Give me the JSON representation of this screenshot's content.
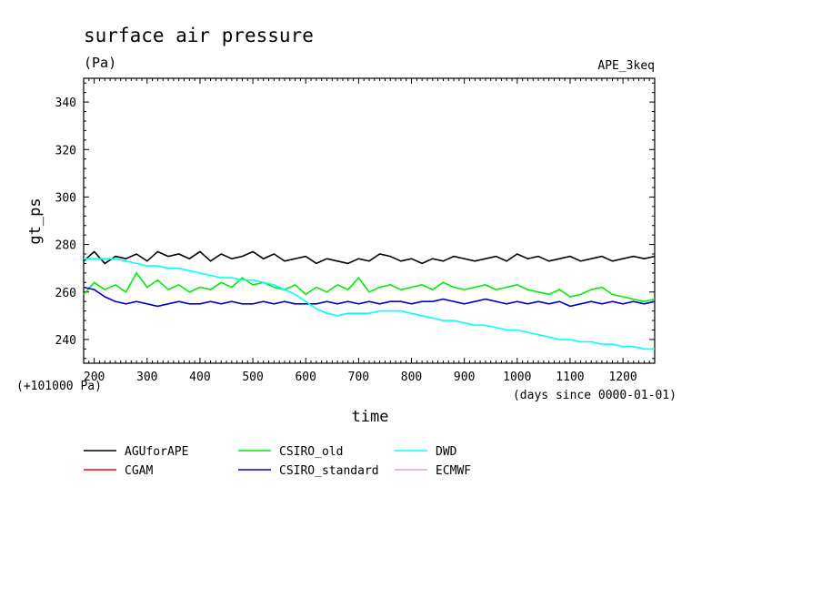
{
  "chart_data": {
    "type": "line",
    "title": "surface air pressure",
    "units": "(Pa)",
    "experiment": "APE_3keq",
    "ylabel": "gt_ps",
    "xlabel": "time",
    "y_offset_note": "(+101000 Pa)",
    "x_units_note": "(days since 0000-01-01)",
    "xlim": [
      180,
      1260
    ],
    "ylim": [
      230,
      350
    ],
    "x_ticks": [
      200,
      300,
      400,
      500,
      600,
      700,
      800,
      900,
      1000,
      1100,
      1200
    ],
    "y_ticks": [
      240,
      260,
      280,
      300,
      320,
      340
    ],
    "x_tick_labels": [
      "200",
      "300",
      "400",
      "500",
      "600",
      "700",
      "800",
      "900",
      "1000",
      "1100",
      "1200"
    ],
    "y_tick_labels": [
      "240",
      "260",
      "280",
      "300",
      "320",
      "340"
    ],
    "legend_placement": "bottom",
    "series": [
      {
        "name": "AGUforAPE",
        "color": "#000000",
        "x": [
          180,
          200,
          220,
          240,
          260,
          280,
          300,
          320,
          340,
          360,
          380,
          400,
          420,
          440,
          460,
          480,
          500,
          520,
          540,
          560,
          580,
          600,
          620,
          640,
          660,
          680,
          700,
          720,
          740,
          760,
          780,
          800,
          820,
          840,
          860,
          880,
          900,
          920,
          940,
          960,
          980,
          1000,
          1020,
          1040,
          1060,
          1080,
          1100,
          1120,
          1140,
          1160,
          1180,
          1200,
          1220,
          1240,
          1260
        ],
        "y": [
          273,
          277,
          272,
          275,
          274,
          276,
          273,
          277,
          275,
          276,
          274,
          277,
          273,
          276,
          274,
          275,
          277,
          274,
          276,
          273,
          274,
          275,
          272,
          274,
          273,
          272,
          274,
          273,
          276,
          275,
          273,
          274,
          272,
          274,
          273,
          275,
          274,
          273,
          274,
          275,
          273,
          276,
          274,
          275,
          273,
          274,
          275,
          273,
          274,
          275,
          273,
          274,
          275,
          274,
          275
        ]
      },
      {
        "name": "CGAM",
        "color": "#ff0000",
        "x": [],
        "y": []
      },
      {
        "name": "CSIRO_old",
        "color": "#00ee00",
        "x": [
          180,
          200,
          220,
          240,
          260,
          280,
          300,
          320,
          340,
          360,
          380,
          400,
          420,
          440,
          460,
          480,
          500,
          520,
          540,
          560,
          580,
          600,
          620,
          640,
          660,
          680,
          700,
          720,
          740,
          760,
          780,
          800,
          820,
          840,
          860,
          880,
          900,
          920,
          940,
          960,
          980,
          1000,
          1020,
          1040,
          1060,
          1080,
          1100,
          1120,
          1140,
          1160,
          1180,
          1200,
          1220,
          1240,
          1260
        ],
        "y": [
          259,
          264,
          261,
          263,
          260,
          268,
          262,
          265,
          261,
          263,
          260,
          262,
          261,
          264,
          262,
          266,
          263,
          264,
          262,
          261,
          263,
          259,
          262,
          260,
          263,
          261,
          266,
          260,
          262,
          263,
          261,
          262,
          263,
          261,
          264,
          262,
          261,
          262,
          263,
          261,
          262,
          263,
          261,
          260,
          259,
          261,
          258,
          259,
          261,
          262,
          259,
          258,
          257,
          256,
          257
        ]
      },
      {
        "name": "CSIRO_standard",
        "color": "#0000cc",
        "x": [
          180,
          200,
          220,
          240,
          260,
          280,
          300,
          320,
          340,
          360,
          380,
          400,
          420,
          440,
          460,
          480,
          500,
          520,
          540,
          560,
          580,
          600,
          620,
          640,
          660,
          680,
          700,
          720,
          740,
          760,
          780,
          800,
          820,
          840,
          860,
          880,
          900,
          920,
          940,
          960,
          980,
          1000,
          1020,
          1040,
          1060,
          1080,
          1100,
          1120,
          1140,
          1160,
          1180,
          1200,
          1220,
          1240,
          1260
        ],
        "y": [
          262,
          261,
          258,
          256,
          255,
          256,
          255,
          254,
          255,
          256,
          255,
          255,
          256,
          255,
          256,
          255,
          255,
          256,
          255,
          256,
          255,
          255,
          255,
          256,
          255,
          256,
          255,
          256,
          255,
          256,
          256,
          255,
          256,
          256,
          257,
          256,
          255,
          256,
          257,
          256,
          255,
          256,
          255,
          256,
          255,
          256,
          254,
          255,
          256,
          255,
          256,
          255,
          256,
          255,
          256
        ]
      },
      {
        "name": "DWD",
        "color": "#00ffff",
        "x": [
          180,
          200,
          220,
          240,
          260,
          280,
          300,
          320,
          340,
          360,
          380,
          400,
          420,
          440,
          460,
          480,
          500,
          520,
          540,
          560,
          580,
          600,
          620,
          640,
          660,
          680,
          700,
          720,
          740,
          760,
          780,
          800,
          820,
          840,
          860,
          880,
          900,
          920,
          940,
          960,
          980,
          1000,
          1020,
          1040,
          1060,
          1080,
          1100,
          1120,
          1140,
          1160,
          1180,
          1200,
          1220,
          1240,
          1260
        ],
        "y": [
          274,
          274,
          274,
          274,
          273,
          272,
          271,
          271,
          270,
          270,
          269,
          268,
          267,
          266,
          266,
          265,
          265,
          264,
          263,
          261,
          259,
          256,
          253,
          251,
          250,
          251,
          251,
          251,
          252,
          252,
          252,
          251,
          250,
          249,
          248,
          248,
          247,
          246,
          246,
          245,
          244,
          244,
          243,
          242,
          241,
          240,
          240,
          239,
          239,
          238,
          238,
          237,
          237,
          236,
          236
        ]
      },
      {
        "name": "ECMWF",
        "color": "#dda0dd",
        "x": [],
        "y": []
      }
    ]
  }
}
